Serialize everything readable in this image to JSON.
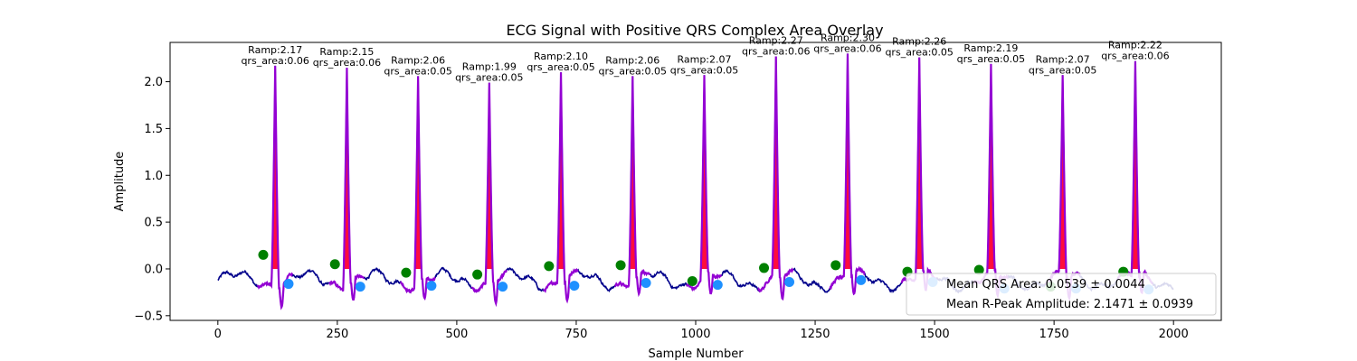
{
  "chart_data": {
    "type": "line",
    "title": "ECG Signal with Positive QRS Complex Area Overlay",
    "xlabel": "Sample Number",
    "ylabel": "Amplitude",
    "xlim": [
      -100,
      2100
    ],
    "ylim": [
      -0.55,
      2.42
    ],
    "xticks": [
      0,
      250,
      500,
      750,
      1000,
      1250,
      1500,
      1750,
      2000
    ],
    "yticks": [
      -0.5,
      0.0,
      0.5,
      1.0,
      1.5,
      2.0
    ],
    "xtick_labels": [
      "0",
      "250",
      "500",
      "750",
      "1000",
      "1250",
      "1500",
      "1750",
      "2000"
    ],
    "ytick_labels": [
      "−0.5",
      "0.0",
      "0.5",
      "1.0",
      "1.5",
      "2.0"
    ],
    "grid": false,
    "legend_position": "lower-right",
    "colors": {
      "signal": "#00008b",
      "qrs_line": "#9400d3",
      "qrs_fill": "#ff0030",
      "q_marker": "#008000",
      "s_marker": "#1e90ff"
    },
    "beats": [
      {
        "r_x": 120,
        "r_amp": 2.17,
        "q_x": 95,
        "q_y": 0.15,
        "s_x": 148,
        "s_y": -0.16,
        "ramp_label": "Ramp:2.17",
        "area_label": "qrs_area:0.06"
      },
      {
        "r_x": 270,
        "r_amp": 2.15,
        "q_x": 245,
        "q_y": 0.05,
        "s_x": 298,
        "s_y": -0.19,
        "ramp_label": "Ramp:2.15",
        "area_label": "qrs_area:0.06"
      },
      {
        "r_x": 419,
        "r_amp": 2.06,
        "q_x": 394,
        "q_y": -0.04,
        "s_x": 447,
        "s_y": -0.18,
        "ramp_label": "Ramp:2.06",
        "area_label": "qrs_area:0.05"
      },
      {
        "r_x": 568,
        "r_amp": 1.99,
        "q_x": 543,
        "q_y": -0.06,
        "s_x": 596,
        "s_y": -0.19,
        "ramp_label": "Ramp:1.99",
        "area_label": "qrs_area:0.05"
      },
      {
        "r_x": 718,
        "r_amp": 2.1,
        "q_x": 693,
        "q_y": 0.03,
        "s_x": 746,
        "s_y": -0.18,
        "ramp_label": "Ramp:2.10",
        "area_label": "qrs_area:0.05"
      },
      {
        "r_x": 868,
        "r_amp": 2.06,
        "q_x": 843,
        "q_y": 0.04,
        "s_x": 896,
        "s_y": -0.15,
        "ramp_label": "Ramp:2.06",
        "area_label": "qrs_area:0.05"
      },
      {
        "r_x": 1018,
        "r_amp": 2.07,
        "q_x": 993,
        "q_y": -0.13,
        "s_x": 1046,
        "s_y": -0.17,
        "ramp_label": "Ramp:2.07",
        "area_label": "qrs_area:0.05"
      },
      {
        "r_x": 1168,
        "r_amp": 2.27,
        "q_x": 1143,
        "q_y": 0.01,
        "s_x": 1196,
        "s_y": -0.14,
        "ramp_label": "Ramp:2.27",
        "area_label": "qrs_area:0.06"
      },
      {
        "r_x": 1318,
        "r_amp": 2.3,
        "q_x": 1293,
        "q_y": 0.04,
        "s_x": 1346,
        "s_y": -0.12,
        "ramp_label": "Ramp:2.30",
        "area_label": "qrs_area:0.06"
      },
      {
        "r_x": 1468,
        "r_amp": 2.26,
        "q_x": 1443,
        "q_y": -0.03,
        "s_x": 1496,
        "s_y": -0.14,
        "ramp_label": "Ramp:2.26",
        "area_label": "qrs_area:0.05"
      },
      {
        "r_x": 1618,
        "r_amp": 2.19,
        "q_x": 1593,
        "q_y": -0.01,
        "s_x": 1646,
        "s_y": -0.21,
        "ramp_label": "Ramp:2.19",
        "area_label": "qrs_area:0.05"
      },
      {
        "r_x": 1768,
        "r_amp": 2.07,
        "q_x": 1743,
        "q_y": -0.19,
        "s_x": 1796,
        "s_y": -0.21,
        "ramp_label": "Ramp:2.07",
        "area_label": "qrs_area:0.05"
      },
      {
        "r_x": 1920,
        "r_amp": 2.22,
        "q_x": 1895,
        "q_y": -0.03,
        "s_x": 1948,
        "s_y": -0.22,
        "ramp_label": "Ramp:2.22",
        "area_label": "qrs_area:0.06"
      }
    ],
    "legend": {
      "mean_qrs_area": "Mean QRS Area: 0.0539 ± 0.0044",
      "mean_r_peak": "Mean R-Peak Amplitude: 2.1471 ± 0.0939"
    }
  }
}
